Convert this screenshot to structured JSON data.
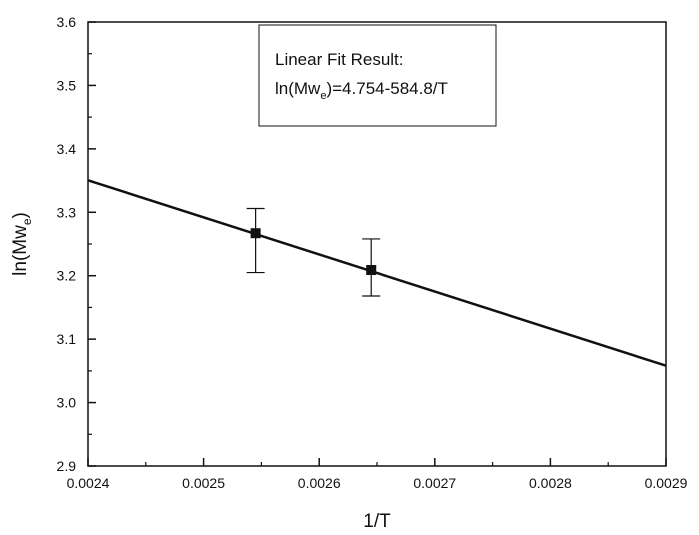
{
  "chart_data": {
    "type": "scatter",
    "xlabel": "1/T",
    "ylabel": {
      "base": "ln(Mw",
      "sub": "e",
      "end": ")"
    },
    "xlim": [
      0.0024,
      0.0029
    ],
    "ylim": [
      2.9,
      3.6
    ],
    "x_ticks": [
      0.0024,
      0.0025,
      0.0026,
      0.0027,
      0.0028,
      0.0029
    ],
    "x_tick_labels": [
      "0.0024",
      "0.0025",
      "0.0026",
      "0.0027",
      "0.0028",
      "0.0029"
    ],
    "y_ticks": [
      2.9,
      3.0,
      3.1,
      3.2,
      3.3,
      3.4,
      3.5,
      3.6
    ],
    "y_tick_labels": [
      "2.9",
      "3.0",
      "3.1",
      "3.2",
      "3.3",
      "3.4",
      "3.5",
      "3.6"
    ],
    "grid": false,
    "points": [
      {
        "x": 0.002545,
        "y": 3.267,
        "err_low": 3.205,
        "err_high": 3.306
      },
      {
        "x": 0.002645,
        "y": 3.209,
        "err_low": 3.168,
        "err_high": 3.258
      }
    ],
    "fit": {
      "intercept": 4.754,
      "slope": -584.8,
      "x_from": 0.0024,
      "x_to": 0.0029
    },
    "annotation": {
      "line1": "Linear Fit Result:",
      "line2": {
        "base": "ln(Mw",
        "sub": "e",
        "end": ")=4.754-584.8/T"
      },
      "placement": "top-center"
    }
  }
}
